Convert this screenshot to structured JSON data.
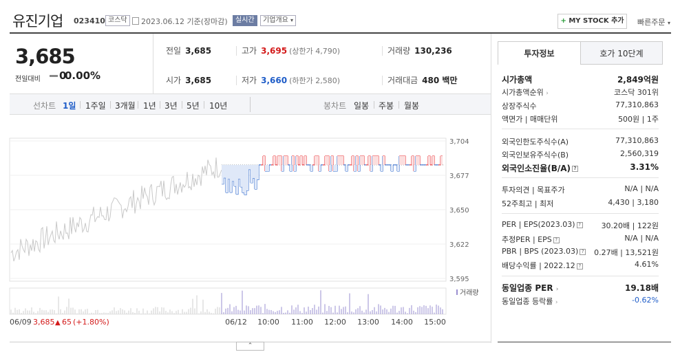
{
  "header": {
    "company": "유진기업",
    "code": "023410",
    "market": "코스닥",
    "date": "2023.06.12",
    "date_basis": "기준(장마감)",
    "live_badge": "실시간",
    "overview_label": "기업개요",
    "mystock_label": "MY STOCK 추가",
    "quick_order": "빠른주문"
  },
  "price": {
    "current": "3,685",
    "prev_label": "전일대비",
    "change": "0",
    "change_pct": "0.00%"
  },
  "stats": {
    "prev_close_label": "전일",
    "prev_close": "3,685",
    "high_label": "고가",
    "high": "3,695",
    "upper_limit": "(상한가 4,790)",
    "volume_label": "거래량",
    "volume": "130,236",
    "open_label": "시가",
    "open": "3,685",
    "low_label": "저가",
    "low": "3,660",
    "lower_limit": "(하한가 2,580)",
    "amount_label": "거래대금",
    "amount": "480 백만"
  },
  "period": {
    "line_label": "선차트",
    "line_options": [
      "1일",
      "1주일",
      "3개월",
      "1년",
      "3년",
      "5년",
      "10년"
    ],
    "selected": "1일",
    "candle_label": "봉차트",
    "candle_options": [
      "일봉",
      "주봉",
      "월봉"
    ]
  },
  "chart_data": {
    "type": "line",
    "y_ticks": [
      "3,704",
      "3,677",
      "3,650",
      "3,622",
      "3,595"
    ],
    "ylim": [
      3595,
      3704
    ],
    "x_ticks": [
      "06/12",
      "10:00",
      "11:00",
      "12:00",
      "13:00",
      "14:00",
      "15:00"
    ],
    "prev_day_label": "06/09",
    "prev_day_close": "3,685",
    "prev_day_change": "65",
    "prev_day_change_pct": "(+1.80%)",
    "volume_label": "거래량",
    "baseline": 3685,
    "colors": {
      "up": "#e8232a",
      "down": "#1f5dc8",
      "prev": "#c8c8c8"
    }
  },
  "panel": {
    "tab_active": "투자정보",
    "tab_other": "호가 10단계",
    "market_cap_label": "시가총액",
    "market_cap": "2,849억원",
    "cap_rank_label": "시가총액순위",
    "cap_rank": "코스닥 301위",
    "shares_label": "상장주식수",
    "shares": "77,310,863",
    "face_label": "액면가 | 매매단위",
    "face": "500원 | 1주",
    "foreign_limit_label": "외국인한도주식수(A)",
    "foreign_limit": "77,310,863",
    "foreign_hold_label": "외국인보유주식수(B)",
    "foreign_hold": "2,560,319",
    "foreign_ratio_label": "외국인소진율(B/A)",
    "foreign_ratio": "3.31%",
    "opinion_label": "투자의견 | 목표주가",
    "opinion": "N/A | N/A",
    "week52_label": "52주최고 | 최저",
    "week52": "4,430 | 3,180",
    "per_label": "PER | EPS(2023.03)",
    "per": "30.20배 | 122원",
    "est_per_label": "추정PER | EPS",
    "est_per": "N/A | N/A",
    "pbr_label": "PBR | BPS (2023.03)",
    "pbr": "0.27배 | 13,521원",
    "div_label": "배당수익률 | 2022.12",
    "div": "4.61%",
    "sector_per_label": "동일업종 PER",
    "sector_per": "19.18배",
    "sector_rate_label": "동일업종 등락률",
    "sector_rate": "-0.62%"
  }
}
